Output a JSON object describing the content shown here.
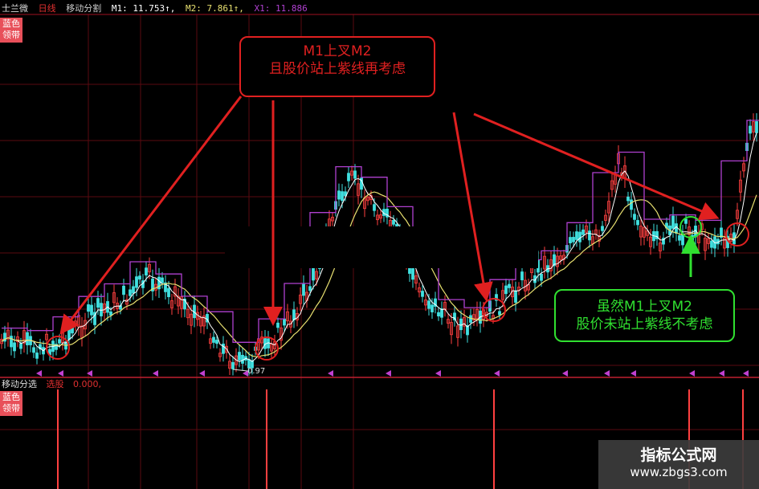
{
  "header": {
    "stock": "士兰微",
    "period": "日线",
    "indicator": "移动分割",
    "m1": "M1: 11.753↑,",
    "m2": "M2: 7.861↑,",
    "x1": "X1: 11.886"
  },
  "badge_label": "蓝色领带",
  "low_marker": "0.97",
  "sub_panel": {
    "name": "移动分选",
    "label": "选股",
    "value": "0.000,"
  },
  "annotations": {
    "red_note": [
      "M1上叉M2",
      "且股价站上紫线再考虑"
    ],
    "green_note": [
      "虽然M1上叉M2",
      "股价未站上紫线不考虑"
    ]
  },
  "watermark": {
    "title": "指标公式网",
    "url": "www.zbgs3.com"
  },
  "colors": {
    "background": "#000000",
    "grid": "#5a0a10",
    "m1": "#ffffff",
    "m2": "#e8e070",
    "x1": "#b040d0",
    "up": "#ff4040",
    "down": "#40e0e0",
    "annotation_red": "#e02020",
    "annotation_green": "#30e030"
  }
}
